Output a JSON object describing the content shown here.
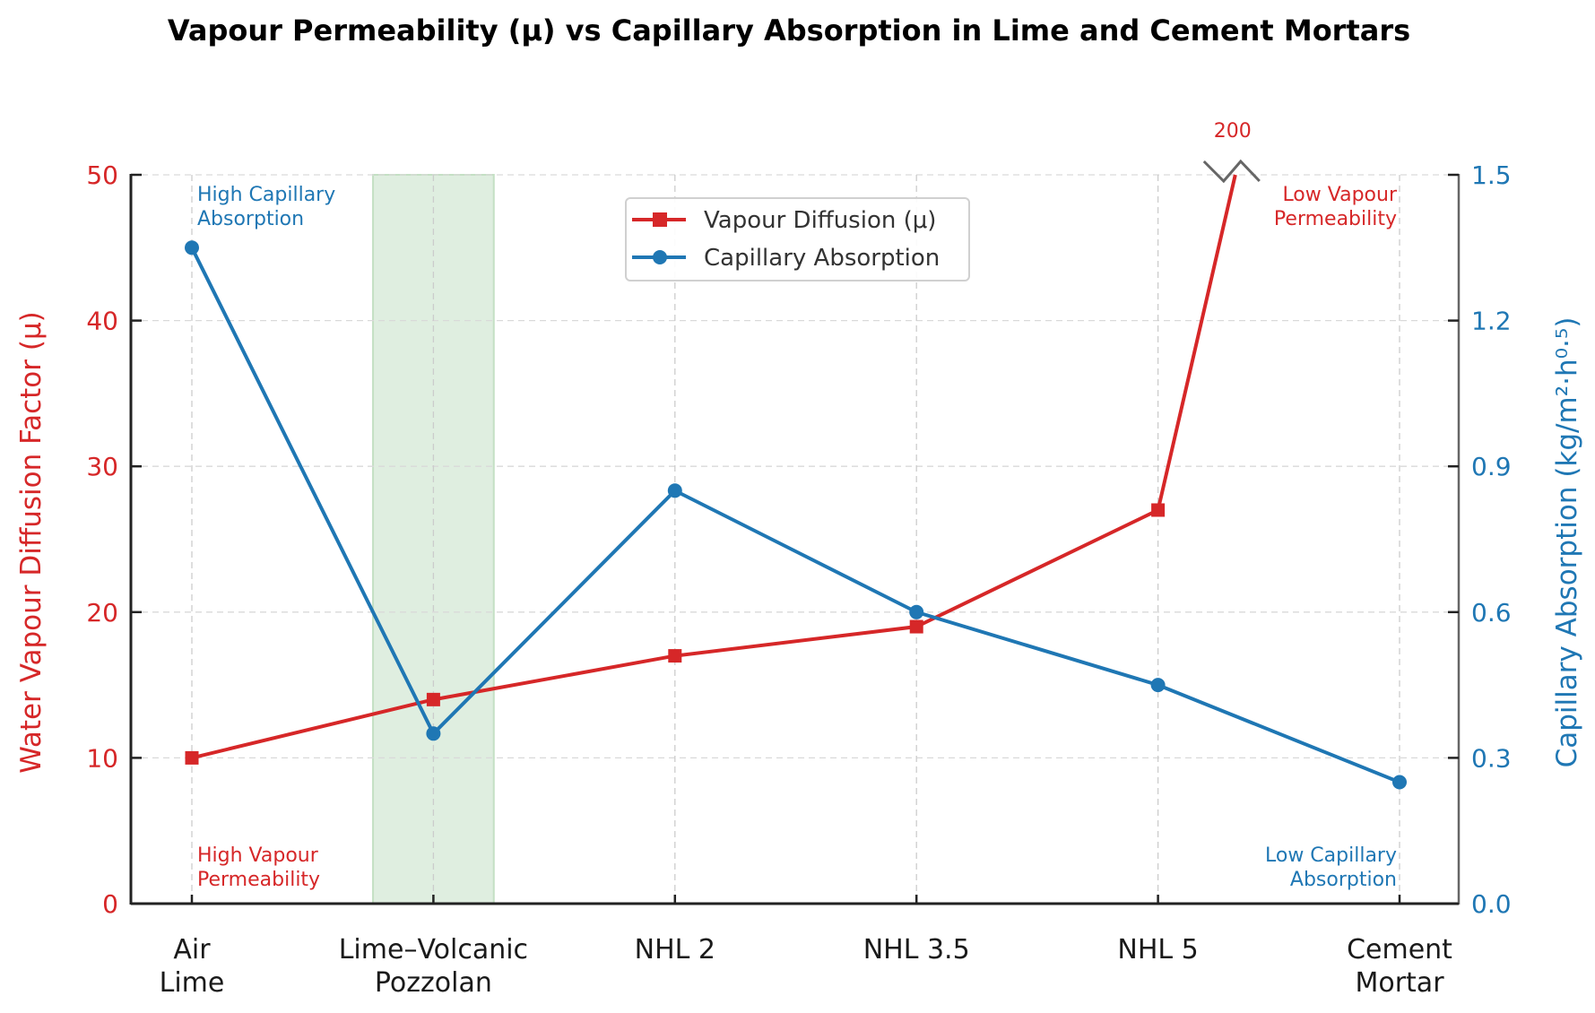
{
  "chart_data": {
    "type": "line",
    "title": "Vapour Permeability (μ) vs Capillary Absorption in Lime and Cement Mortars",
    "xlabel": "",
    "categories": [
      [
        "Air",
        "Lime"
      ],
      [
        "Lime–Volcanic",
        "Pozzolan"
      ],
      [
        "NHL 2"
      ],
      [
        "NHL 3.5"
      ],
      [
        "NHL 5"
      ],
      [
        "Cement",
        "Mortar"
      ]
    ],
    "left_axis": {
      "label": "Water Vapour Diffusion Factor (μ)",
      "ylim": [
        0,
        50
      ],
      "ticks": [
        "0",
        "10",
        "20",
        "30",
        "40",
        "50"
      ],
      "tick_values": [
        0,
        10,
        20,
        30,
        40,
        50
      ],
      "color": "#d62728"
    },
    "right_axis": {
      "label": "Capillary Absorption (kg/m²·h⁰·⁵)",
      "ylim": [
        0,
        1.5
      ],
      "ticks": [
        "0.0",
        "0.3",
        "0.6",
        "0.9",
        "1.2",
        "1.5"
      ],
      "tick_values": [
        0,
        0.3,
        0.6,
        0.9,
        1.2,
        1.5
      ],
      "color": "#1f77b4"
    },
    "series": [
      {
        "name": "Vapour Diffusion (μ)",
        "axis": "left",
        "marker": "square",
        "color": "#d62728",
        "values": [
          10,
          14,
          17,
          19,
          27,
          200
        ]
      },
      {
        "name": "Capillary Absorption",
        "axis": "right",
        "marker": "circle",
        "color": "#1f77b4",
        "values": [
          1.35,
          0.35,
          0.85,
          0.6,
          0.45,
          0.25
        ]
      }
    ],
    "axis_break": {
      "label": "200",
      "note": "Cement Mortar μ value exceeds axis; shown with break marker",
      "color": "#d62728"
    },
    "highlight_band": {
      "category": "Lime–Volcanic Pozzolan",
      "color": "#c8e6c9"
    },
    "annotations": [
      {
        "text": [
          "High Capillary",
          "Absorption"
        ],
        "position": "top-left",
        "color": "#1f77b4"
      },
      {
        "text": [
          "High Vapour",
          "Permeability"
        ],
        "position": "bottom-left",
        "color": "#d62728"
      },
      {
        "text": [
          "Low Vapour",
          "Permeability"
        ],
        "position": "top-right",
        "color": "#d62728"
      },
      {
        "text": [
          "Low Capillary",
          "Absorption"
        ],
        "position": "bottom-right",
        "color": "#1f77b4"
      }
    ],
    "grid": true,
    "legend": {
      "placement": "top-center",
      "entries": [
        "Vapour Diffusion (μ)",
        "Capillary Absorption"
      ]
    }
  }
}
